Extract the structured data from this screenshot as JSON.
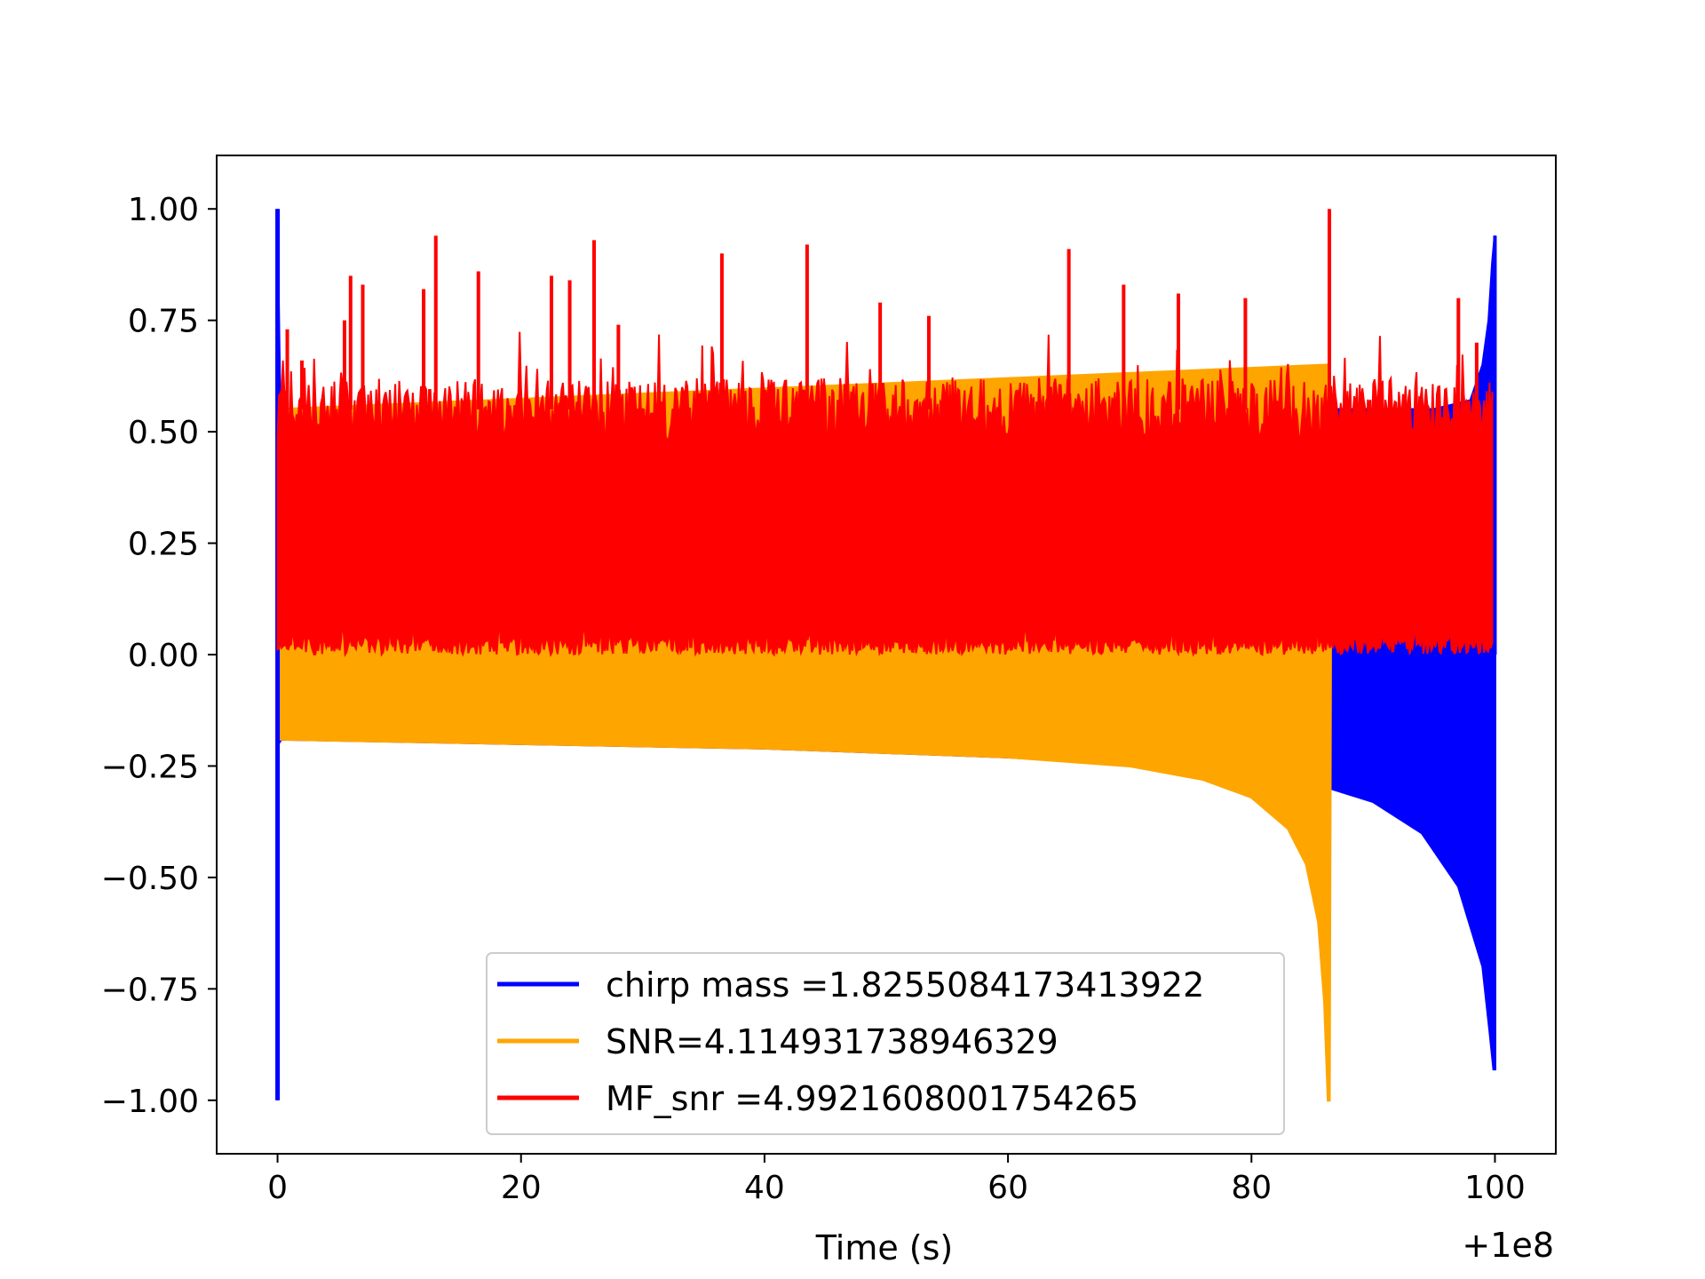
{
  "chart_data": {
    "type": "line",
    "title": "",
    "xlabel": "Time (s)",
    "ylabel": "",
    "x_offset_label": "+1e8",
    "xlim": [
      -5,
      105
    ],
    "ylim": [
      -1.12,
      1.12
    ],
    "xticks": [
      0,
      20,
      40,
      60,
      80,
      100
    ],
    "xtick_labels": [
      "0",
      "20",
      "40",
      "60",
      "80",
      "100"
    ],
    "yticks": [
      1.0,
      0.75,
      0.5,
      0.25,
      0.0,
      -0.25,
      -0.5,
      -0.75,
      -1.0
    ],
    "ytick_labels": [
      "1.00",
      "0.75",
      "0.50",
      "0.25",
      "0.00",
      "−0.25",
      "−0.50",
      "−0.75",
      "−1.00"
    ],
    "grid": false,
    "legend_position": "lower-center",
    "series": [
      {
        "name": "chirp mass =1.8255084173413922",
        "color": "#0000ff",
        "upper": [
          [
            0,
            1.0
          ],
          [
            0.05,
            0.83
          ],
          [
            0.2,
            0.55
          ],
          [
            86.5,
            0.55
          ],
          [
            90,
            0.55
          ],
          [
            95,
            0.55
          ],
          [
            98,
            0.57
          ],
          [
            99,
            0.65
          ],
          [
            99.5,
            0.75
          ],
          [
            99.8,
            0.88
          ],
          [
            100,
            0.94
          ]
        ],
        "lower": [
          [
            0,
            -1.0
          ],
          [
            0.05,
            -0.2
          ],
          [
            0.3,
            -0.19
          ],
          [
            20,
            -0.2
          ],
          [
            40,
            -0.21
          ],
          [
            60,
            -0.23
          ],
          [
            80,
            -0.26
          ],
          [
            86.5,
            -0.3
          ],
          [
            90,
            -0.33
          ],
          [
            94,
            -0.4
          ],
          [
            97,
            -0.52
          ],
          [
            99,
            -0.7
          ],
          [
            99.6,
            -0.85
          ],
          [
            99.9,
            -0.93
          ],
          [
            100,
            -0.93
          ]
        ]
      },
      {
        "name": "SNR=4.114931738946329",
        "color": "#ffa500",
        "upper": [
          [
            0,
            0.55
          ],
          [
            86.4,
            0.65
          ],
          [
            86.5,
            0.0
          ]
        ],
        "lower": [
          [
            0,
            -0.19
          ],
          [
            20,
            -0.2
          ],
          [
            40,
            -0.21
          ],
          [
            60,
            -0.23
          ],
          [
            70,
            -0.25
          ],
          [
            76,
            -0.28
          ],
          [
            80,
            -0.32
          ],
          [
            83,
            -0.39
          ],
          [
            84.5,
            -0.47
          ],
          [
            85.5,
            -0.6
          ],
          [
            86,
            -0.78
          ],
          [
            86.3,
            -1.0
          ],
          [
            86.4,
            -1.0
          ]
        ]
      },
      {
        "name": "MF_snr =4.9921608001754265",
        "color": "#ff0000",
        "upper_baseline": 0.55,
        "lower_baseline": 0.02,
        "peaks": [
          [
            0.8,
            0.73
          ],
          [
            2,
            0.66
          ],
          [
            5.5,
            0.75
          ],
          [
            6,
            0.85
          ],
          [
            7,
            0.83
          ],
          [
            12,
            0.82
          ],
          [
            13,
            0.94
          ],
          [
            16.5,
            0.86
          ],
          [
            22.5,
            0.85
          ],
          [
            24,
            0.84
          ],
          [
            26,
            0.93
          ],
          [
            28,
            0.74
          ],
          [
            36.5,
            0.9
          ],
          [
            43.5,
            0.92
          ],
          [
            49.5,
            0.79
          ],
          [
            53.5,
            0.76
          ],
          [
            65,
            0.91
          ],
          [
            69.5,
            0.83
          ],
          [
            74,
            0.81
          ],
          [
            79.5,
            0.8
          ],
          [
            86.4,
            1.0
          ],
          [
            97,
            0.8
          ],
          [
            98.5,
            0.7
          ]
        ]
      }
    ]
  }
}
